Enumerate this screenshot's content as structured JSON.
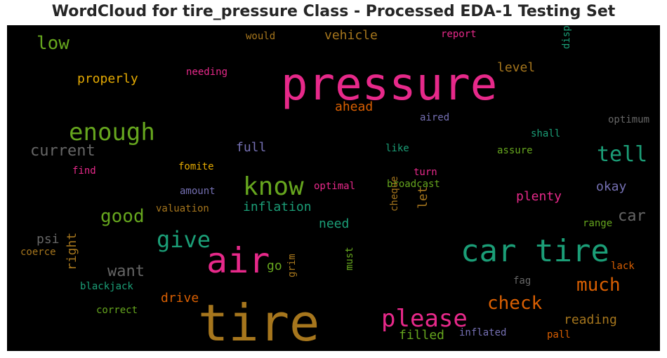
{
  "title": "WordCloud for tire_pressure Class - Processed EDA-1 Testing Set",
  "background": "#000000",
  "chart_data": {
    "type": "wordcloud",
    "title": "WordCloud for tire_pressure Class - Processed EDA-1 Testing Set",
    "words": [
      {
        "text": "pressure",
        "color": "#e7298a"
      },
      {
        "text": "tire",
        "color": "#a6761d"
      },
      {
        "text": "car tire",
        "color": "#1b9e77"
      },
      {
        "text": "air",
        "color": "#e7298a"
      },
      {
        "text": "know",
        "color": "#66a61e"
      },
      {
        "text": "enough",
        "color": "#66a61e"
      },
      {
        "text": "please",
        "color": "#e7298a"
      },
      {
        "text": "give",
        "color": "#1b9e77"
      },
      {
        "text": "tell",
        "color": "#1b9e77"
      },
      {
        "text": "check",
        "color": "#d95f02"
      },
      {
        "text": "good",
        "color": "#66a61e"
      },
      {
        "text": "much",
        "color": "#d95f02"
      },
      {
        "text": "low",
        "color": "#66a61e"
      },
      {
        "text": "current",
        "color": "#666666"
      },
      {
        "text": "want",
        "color": "#666666"
      },
      {
        "text": "car",
        "color": "#666666"
      },
      {
        "text": "properly",
        "color": "#e6ab02"
      },
      {
        "text": "plenty",
        "color": "#e7298a"
      },
      {
        "text": "inflation",
        "color": "#1b9e77"
      },
      {
        "text": "vehicle",
        "color": "#a6761d"
      },
      {
        "text": "level",
        "color": "#a6761d"
      },
      {
        "text": "ahead",
        "color": "#d95f02"
      },
      {
        "text": "okay",
        "color": "#7570b3"
      },
      {
        "text": "full",
        "color": "#7570b3"
      },
      {
        "text": "need",
        "color": "#1b9e77"
      },
      {
        "text": "reading",
        "color": "#a6761d"
      },
      {
        "text": "drive",
        "color": "#d95f02"
      },
      {
        "text": "filled",
        "color": "#66a61e"
      },
      {
        "text": "psi",
        "color": "#666666"
      },
      {
        "text": "let",
        "color": "#a6761d"
      },
      {
        "text": "right",
        "color": "#a6761d"
      },
      {
        "text": "go",
        "color": "#66a61e"
      },
      {
        "text": "dispirited",
        "color": "#1b9e77"
      },
      {
        "text": "optimum",
        "color": "#666666"
      },
      {
        "text": "would",
        "color": "#a6761d"
      },
      {
        "text": "report",
        "color": "#e7298a"
      },
      {
        "text": "needing",
        "color": "#e7298a"
      },
      {
        "text": "aired",
        "color": "#7570b3"
      },
      {
        "text": "shall",
        "color": "#1b9e77"
      },
      {
        "text": "like",
        "color": "#1b9e77"
      },
      {
        "text": "assure",
        "color": "#66a61e"
      },
      {
        "text": "turn",
        "color": "#e7298a"
      },
      {
        "text": "broadcast",
        "color": "#66a61e"
      },
      {
        "text": "optimal",
        "color": "#e7298a"
      },
      {
        "text": "fomite",
        "color": "#e6ab02"
      },
      {
        "text": "find",
        "color": "#e7298a"
      },
      {
        "text": "amount",
        "color": "#7570b3"
      },
      {
        "text": "valuation",
        "color": "#a6761d"
      },
      {
        "text": "range",
        "color": "#66a61e"
      },
      {
        "text": "cheque",
        "color": "#a6761d"
      },
      {
        "text": "coerce",
        "color": "#a6761d"
      },
      {
        "text": "blackjack",
        "color": "#1b9e77"
      },
      {
        "text": "grim",
        "color": "#a6761d"
      },
      {
        "text": "must",
        "color": "#66a61e"
      },
      {
        "text": "correct",
        "color": "#66a61e"
      },
      {
        "text": "fag",
        "color": "#666666"
      },
      {
        "text": "lack",
        "color": "#d95f02"
      },
      {
        "text": "pall",
        "color": "#d95f02"
      },
      {
        "text": "inflated",
        "color": "#7570b3"
      }
    ]
  }
}
